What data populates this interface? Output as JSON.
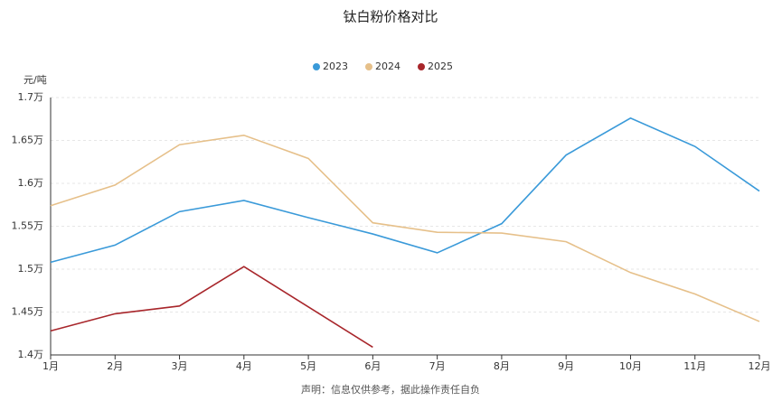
{
  "chart_data": {
    "type": "line",
    "title": "钛白粉价格对比",
    "y_label": "元/吨",
    "note": "声明：信息仅供参考，据此操作责任自负",
    "categories": [
      "1月",
      "2月",
      "3月",
      "4月",
      "5月",
      "6月",
      "7月",
      "8月",
      "9月",
      "10月",
      "11月",
      "12月"
    ],
    "series": [
      {
        "name": "2023",
        "color": "#3a9ad9",
        "values": [
          15080,
          15280,
          15670,
          15800,
          15600,
          15410,
          15190,
          15530,
          16330,
          16760,
          16430,
          15910
        ]
      },
      {
        "name": "2024",
        "color": "#e6c08a",
        "values": [
          15740,
          15980,
          16450,
          16560,
          16290,
          15540,
          15430,
          15420,
          15320,
          14960,
          14710,
          14390
        ]
      },
      {
        "name": "2025",
        "color": "#a8262b",
        "values": [
          14280,
          14480,
          14570,
          15030,
          14560,
          14090,
          null,
          null,
          null,
          null,
          null,
          null
        ]
      }
    ],
    "ylim": [
      14000,
      17000
    ],
    "yticks": [
      {
        "value": 14000,
        "label": "1.4万"
      },
      {
        "value": 14500,
        "label": "1.45万"
      },
      {
        "value": 15000,
        "label": "1.5万"
      },
      {
        "value": 15500,
        "label": "1.55万"
      },
      {
        "value": 16000,
        "label": "1.6万"
      },
      {
        "value": 16500,
        "label": "1.65万"
      },
      {
        "value": 17000,
        "label": "1.7万"
      }
    ],
    "grid": true,
    "legend": "top"
  }
}
